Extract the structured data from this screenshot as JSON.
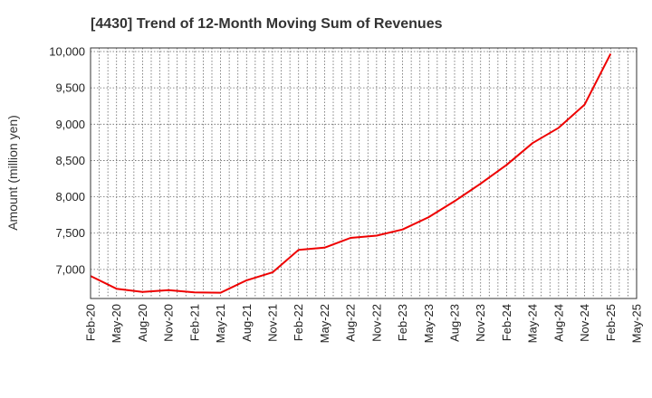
{
  "chart_data": {
    "type": "line",
    "title": "[4430]  Trend of 12-Month Moving Sum of Revenues",
    "xlabel": "",
    "ylabel": "Amount (million yen)",
    "ylim": [
      6600,
      10050
    ],
    "y_ticks": [
      7000,
      7500,
      8000,
      8500,
      9000,
      9500,
      10000
    ],
    "y_tick_labels": [
      "7,000",
      "7,500",
      "8,000",
      "8,500",
      "9,000",
      "9,500",
      "10,000"
    ],
    "x_tick_labels": [
      "Feb-20",
      "May-20",
      "Aug-20",
      "Nov-20",
      "Feb-21",
      "May-21",
      "Aug-21",
      "Nov-21",
      "Feb-22",
      "May-22",
      "Aug-22",
      "Nov-22",
      "Feb-23",
      "May-23",
      "Aug-23",
      "Nov-23",
      "Feb-24",
      "May-24",
      "Aug-24",
      "Nov-24",
      "Feb-25",
      "May-25"
    ],
    "grid": true,
    "series": [
      {
        "x": [
          "Feb-20",
          "May-20",
          "Aug-20",
          "Nov-20",
          "Feb-21",
          "May-21",
          "Aug-21",
          "Nov-21",
          "Feb-22",
          "May-22",
          "Aug-22",
          "Nov-22",
          "Feb-23",
          "May-23",
          "Aug-23",
          "Nov-23",
          "Feb-24",
          "May-24",
          "Aug-24",
          "Nov-24",
          "Feb-25"
        ],
        "values": [
          6910,
          6735,
          6690,
          6715,
          6685,
          6680,
          6850,
          6960,
          7270,
          7300,
          7435,
          7465,
          7550,
          7720,
          7940,
          8180,
          8440,
          8740,
          8950,
          9270,
          9970
        ],
        "color": "#ee0000"
      }
    ]
  }
}
